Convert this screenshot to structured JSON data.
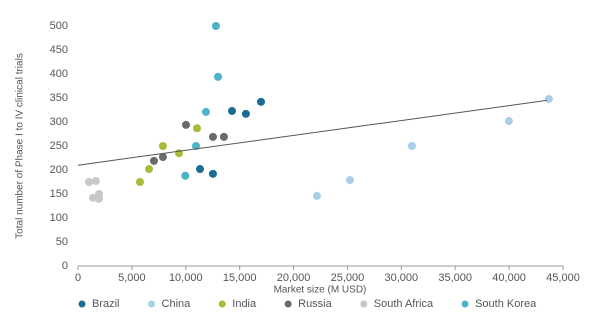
{
  "chart_data": {
    "type": "scatter",
    "x_label": "Market size (M USD)",
    "y_label": "Total number of Phase I to IV clinical trials",
    "xlim": [
      0,
      45000
    ],
    "xticks": [
      0,
      {
        "value": 5000,
        "label": "5,000"
      },
      {
        "value": 10000,
        "label": "10,000"
      },
      {
        "value": 15000,
        "label": "15,000"
      },
      {
        "value": 20000,
        "label": "20,000"
      },
      {
        "value": 25000,
        "label": "25,000"
      },
      {
        "value": 30000,
        "label": "30,000"
      },
      {
        "value": 35000,
        "label": "35,000"
      },
      {
        "value": 40000,
        "label": "40,000"
      },
      {
        "value": 45000,
        "label": "45,000"
      }
    ],
    "ylim": [
      0,
      500
    ],
    "yticks": [
      0,
      50,
      100,
      150,
      200,
      250,
      300,
      350,
      400,
      450,
      500
    ],
    "grid": false,
    "legend": "bottom",
    "series": [
      {
        "name": "Brazil",
        "color": "#1b6c93",
        "x": [
          14290,
          15580,
          16980,
          11320,
          12520
        ],
        "values": [
          323,
          317,
          342,
          202,
          192
        ]
      },
      {
        "name": "China",
        "color": "#a9cfe8",
        "x": [
          22170,
          25230,
          30980,
          39980,
          43690
        ],
        "values": [
          146,
          179,
          250,
          302,
          348
        ]
      },
      {
        "name": "India",
        "color": "#a8bb3a",
        "x": [
          5750,
          6590,
          7880,
          9370,
          11040
        ],
        "values": [
          175,
          202,
          250,
          235,
          287
        ]
      },
      {
        "name": "Russia",
        "color": "#6b6b6b",
        "x": [
          7050,
          7880,
          10020,
          12520,
          13540
        ],
        "values": [
          219,
          227,
          294,
          269,
          269
        ]
      },
      {
        "name": "South Africa",
        "color": "#c8c8c8",
        "x": [
          1020,
          1670,
          1390,
          1950,
          1950
        ],
        "values": [
          175,
          177,
          142,
          150,
          140
        ]
      },
      {
        "name": "South Korea",
        "color": "#4db3c8",
        "x": [
          12800,
          12990,
          11870,
          10950,
          9950
        ],
        "values": [
          500,
          394,
          321,
          250,
          188
        ]
      }
    ],
    "trendline": {
      "color": "#555555",
      "x": [
        0,
        43500
      ],
      "values": [
        210,
        345
      ]
    }
  }
}
